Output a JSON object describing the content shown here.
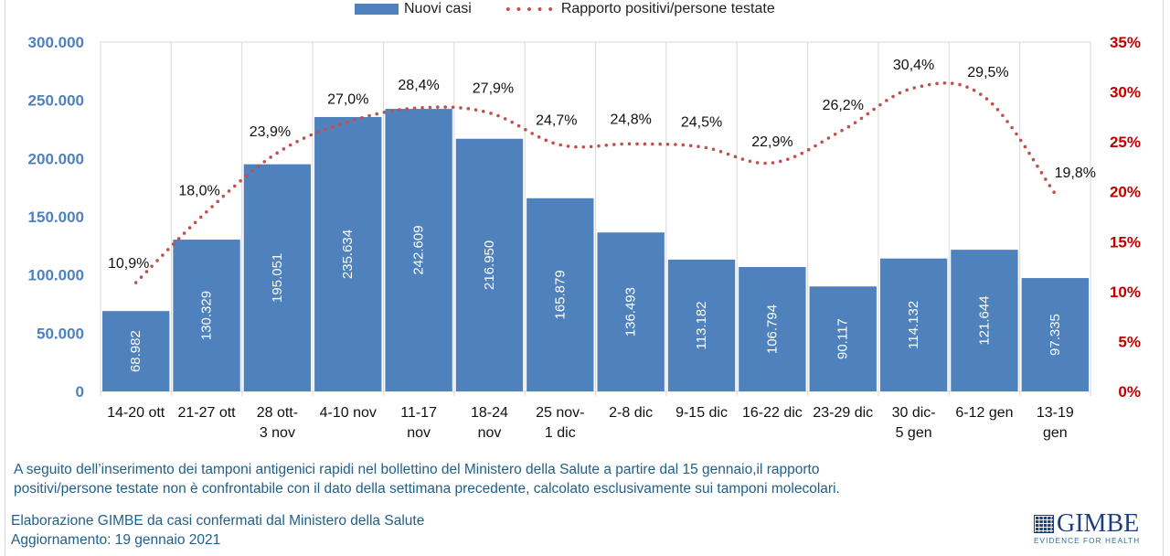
{
  "chart_data": {
    "type": "bar",
    "categories": [
      [
        "14-20 ott"
      ],
      [
        "21-27 ott"
      ],
      [
        "28 ott-",
        "3 nov"
      ],
      [
        "4-10 nov"
      ],
      [
        "11-17",
        "nov"
      ],
      [
        "18-24",
        "nov"
      ],
      [
        "25 nov-",
        "1 dic"
      ],
      [
        "2-8 dic"
      ],
      [
        "9-15 dic"
      ],
      [
        "16-22 dic"
      ],
      [
        "23-29 dic"
      ],
      [
        "30 dic-",
        "5 gen"
      ],
      [
        "6-12 gen"
      ],
      [
        "13-19",
        "gen"
      ]
    ],
    "series": [
      {
        "name": "Nuovi casi",
        "type": "bar",
        "axis": "left",
        "color": "#4f81bd",
        "values": [
          68982,
          130329,
          195051,
          235634,
          242609,
          216950,
          165879,
          136493,
          113182,
          106794,
          90117,
          114132,
          121644,
          97335
        ],
        "labels": [
          "68.982",
          "130.329",
          "195.051",
          "235.634",
          "242.609",
          "216.950",
          "165.879",
          "136.493",
          "113.182",
          "106.794",
          "90.117",
          "114.132",
          "121.644",
          "97.335"
        ]
      },
      {
        "name": "Rapporto positivi/persone testate",
        "type": "line",
        "style": "dotted",
        "axis": "right",
        "color": "#c0504d",
        "values": [
          10.9,
          18.0,
          23.9,
          27.0,
          28.4,
          27.9,
          24.7,
          24.8,
          24.5,
          22.9,
          26.2,
          30.4,
          29.5,
          19.8
        ],
        "labels": [
          "10,9%",
          "18,0%",
          "23,9%",
          "27,0%",
          "28,4%",
          "27,9%",
          "24,7%",
          "24,8%",
          "24,5%",
          "22,9%",
          "26,2%",
          "30,4%",
          "29,5%",
          "19,8%"
        ]
      }
    ],
    "y_left": {
      "min": 0,
      "max": 300000,
      "ticks": [
        0,
        50000,
        100000,
        150000,
        200000,
        250000,
        300000
      ],
      "tick_labels": [
        "0",
        "50.000",
        "100.000",
        "150.000",
        "200.000",
        "250.000",
        "300.000"
      ],
      "color": "#4f81bd"
    },
    "y_right": {
      "min": 0,
      "max": 35,
      "ticks": [
        0,
        5,
        10,
        15,
        20,
        25,
        30,
        35
      ],
      "tick_labels": [
        "0%",
        "5%",
        "10%",
        "15%",
        "20%",
        "25%",
        "30%",
        "35%"
      ],
      "color": "#c00000"
    },
    "grid": "vertical",
    "legend_position": "top-center",
    "title": "",
    "xlabel": "",
    "ylabel": ""
  },
  "legend": {
    "bars_label": "Nuovi casi",
    "line_label": "Rapporto positivi/persone testate"
  },
  "note": {
    "line1": "A seguito dell’inserimento dei tamponi antigenici rapidi nel bollettino del Ministero della Salute a partire dal 15 gennaio,il rapporto",
    "line2": "positivi/persone testate non è confrontabile con il dato della settimana precedente, calcolato esclusivamente sui tamponi molecolari."
  },
  "source": {
    "line1": "Elaborazione GIMBE da casi confermati dal Ministero della Salute",
    "line2": "Aggiornamento: 19 gennaio 2021"
  },
  "logo": {
    "name": "GIMBE",
    "tagline": "EVIDENCE FOR HEALTH"
  }
}
